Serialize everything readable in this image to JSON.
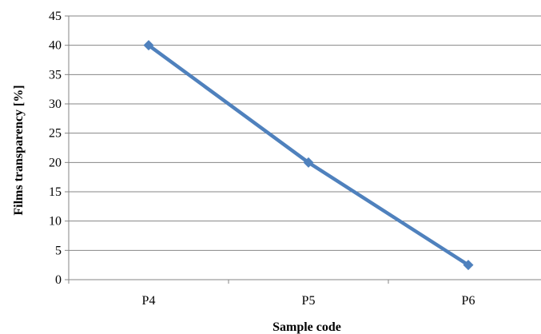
{
  "chart_data": {
    "type": "line",
    "categories": [
      "P4",
      "P5",
      "P6"
    ],
    "series": [
      {
        "values": [
          40,
          20,
          2.5
        ]
      }
    ],
    "xlabel": "Sample code",
    "ylabel": "Films transparency [%]",
    "ylim": [
      0,
      45
    ],
    "yticks": [
      0,
      5,
      10,
      15,
      20,
      25,
      30,
      35,
      40,
      45
    ],
    "grid": true,
    "line_color": "#4f81bd",
    "gridline_color": "#868686"
  }
}
